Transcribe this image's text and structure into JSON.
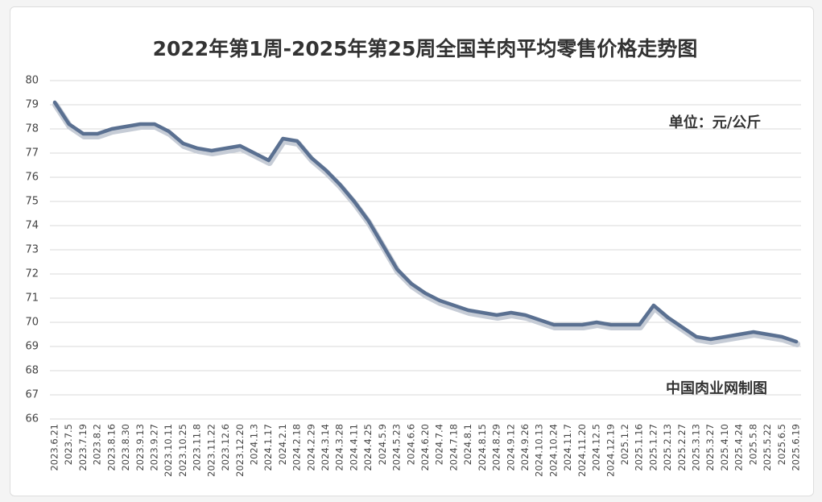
{
  "chart_data": {
    "type": "line",
    "title": "2022年第1周-2025年第25周全国羊肉平均零售价格走势图",
    "annotations": [
      "单位：元/公斤",
      "中国肉业网制图"
    ],
    "categories": [
      "2023.6.21",
      "2023.7.5",
      "2023.7.19",
      "2023.8.2",
      "2023.8.16",
      "2023.8.30",
      "2023.9.13",
      "2023.9.27",
      "2023.10.11",
      "2023.10.25",
      "2023.11.8",
      "2023.11.22",
      "2023.12.6",
      "2023.12.20",
      "2024.1.3",
      "2024.1.17",
      "2024.2.1",
      "2024.2.18",
      "2024.2.29",
      "2024.3.14",
      "2024.3.28",
      "2024.4.11",
      "2024.4.25",
      "2024.5.9",
      "2024.5.23",
      "2024.6.6",
      "2024.6.20",
      "2024.7.4",
      "2024.7.18",
      "2024.8.1",
      "2024.8.15",
      "2024.8.29",
      "2024.9.12",
      "2024.9.26",
      "2024.10.13",
      "2024.10.24",
      "2024.11.7",
      "2024.11.20",
      "2024.12.5",
      "2024.12.19",
      "2025.1.2",
      "2025.1.16",
      "2025.1.27",
      "2025.2.13",
      "2025.2.27",
      "2025.3.13",
      "2025.3.27",
      "2025.4.10",
      "2025.4.24",
      "2025.5.8",
      "2025.5.22",
      "2025.6.5",
      "2025.6.19"
    ],
    "series": [
      {
        "name": "全国羊肉平均零售价格",
        "color": "#5a7091",
        "values": [
          79.1,
          78.2,
          77.8,
          77.8,
          78.0,
          78.1,
          78.2,
          78.2,
          77.9,
          77.4,
          77.2,
          77.1,
          77.2,
          77.3,
          77.0,
          76.7,
          77.6,
          77.5,
          76.8,
          76.3,
          75.7,
          75.0,
          74.2,
          73.2,
          72.2,
          71.6,
          71.2,
          70.9,
          70.7,
          70.5,
          70.4,
          70.3,
          70.4,
          70.3,
          70.1,
          69.9,
          69.9,
          69.9,
          70.0,
          69.9,
          69.9,
          69.9,
          70.7,
          70.2,
          69.8,
          69.4,
          69.3,
          69.4,
          69.5,
          69.6,
          69.5,
          69.4,
          69.2
        ]
      }
    ],
    "ylim": [
      66,
      80
    ],
    "yticks": [
      66,
      67,
      68,
      69,
      70,
      71,
      72,
      73,
      74,
      75,
      76,
      77,
      78,
      79,
      80
    ],
    "grid": true
  }
}
